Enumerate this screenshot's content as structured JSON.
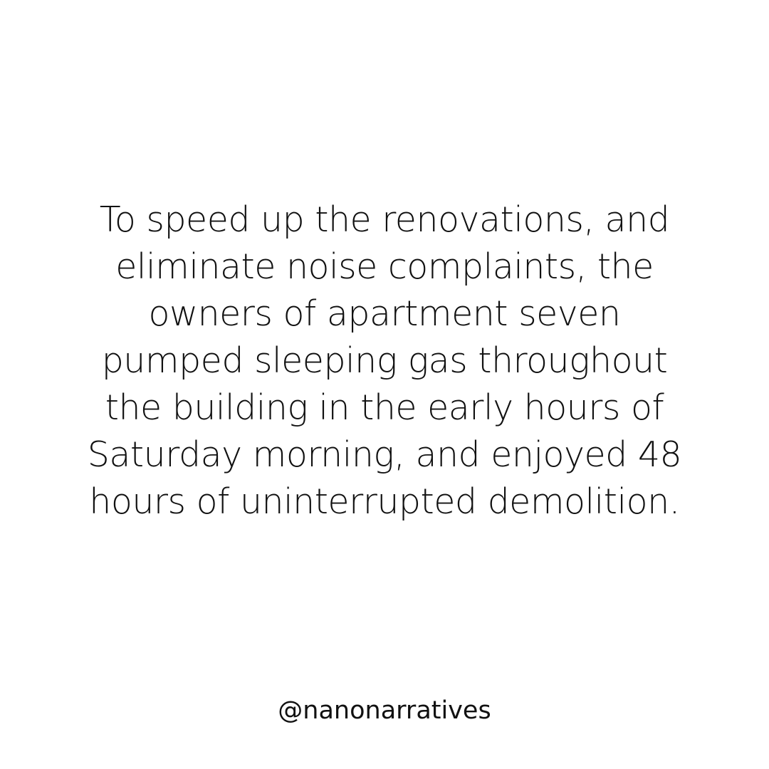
{
  "story": {
    "lines": [
      "To speed up the renovations, and",
      "eliminate noise complaints, the",
      "owners of apartment seven",
      "pumped sleeping gas throughout",
      "the building in the early hours of",
      "Saturday morning, and enjoyed 48",
      "hours of uninterrupted demolition."
    ]
  },
  "handle": "@nanonarratives",
  "colors": {
    "background": "#ffffff",
    "text": "#111111"
  }
}
